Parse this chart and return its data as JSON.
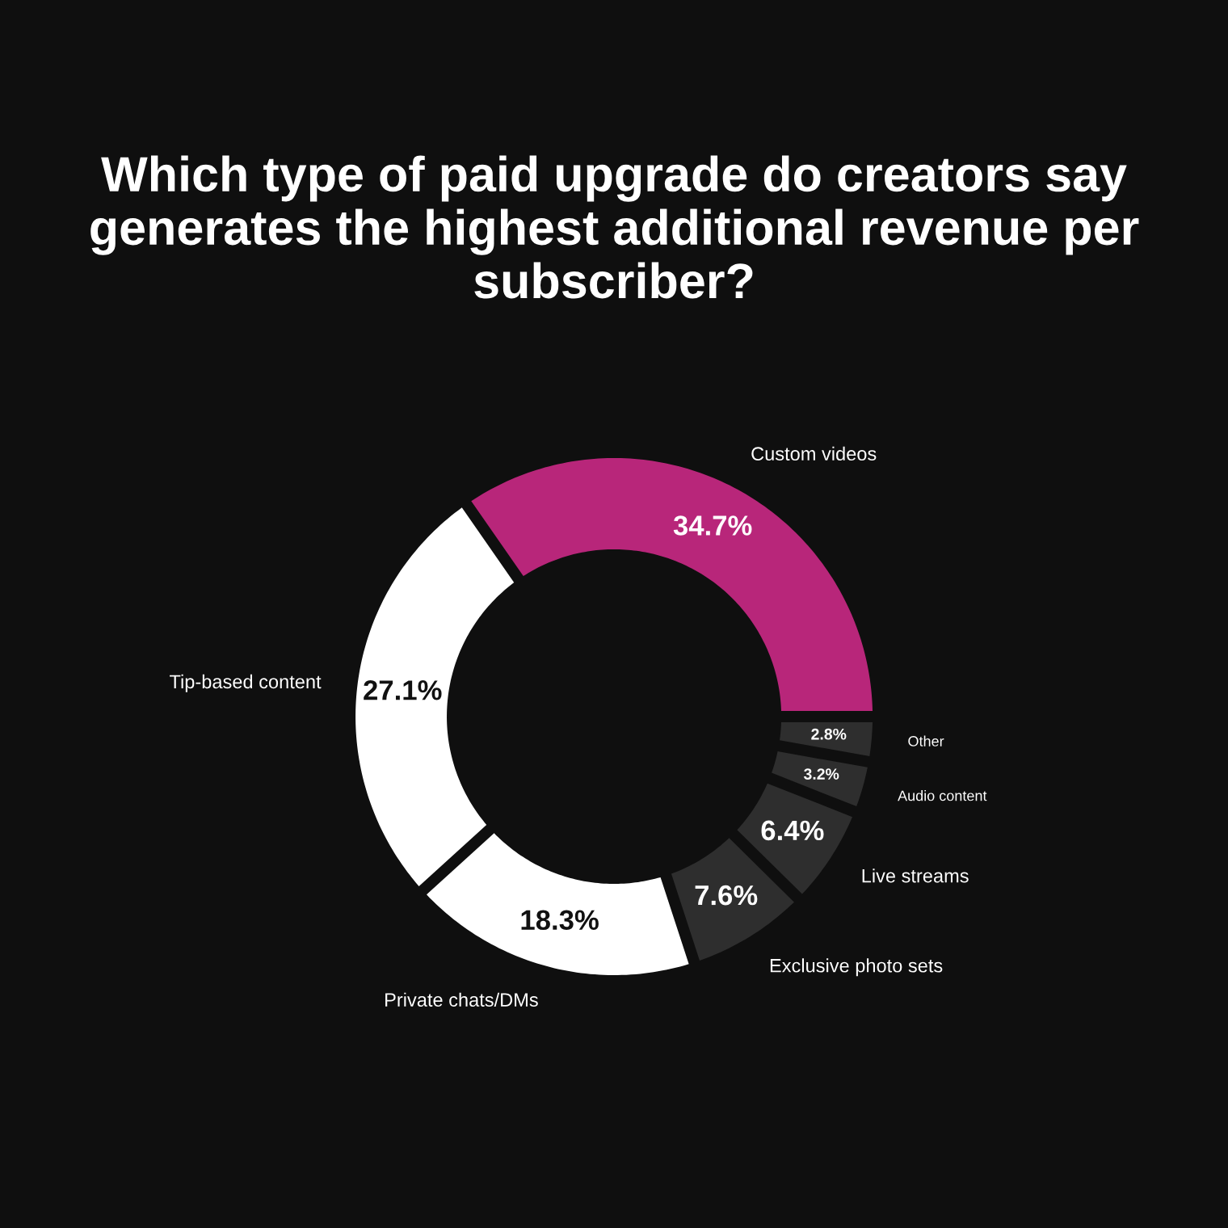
{
  "chart_data": {
    "type": "donut",
    "title": "Which type of paid upgrade do creators say generates the highest additional revenue per subscriber?",
    "categories": [
      "Custom videos",
      "Tip-based content",
      "Private chats/DMs",
      "Exclusive photo sets",
      "Live streams",
      "Audio content",
      "Other"
    ],
    "values": [
      34.7,
      27.1,
      18.3,
      7.6,
      6.4,
      3.2,
      2.8
    ],
    "colors": [
      "#b8267a",
      "#ffffff",
      "#ffffff",
      "#2e2e2e",
      "#2e2e2e",
      "#2e2e2e",
      "#2e2e2e"
    ],
    "value_labels": [
      "34.7%",
      "27.1%",
      "18.3%",
      "7.6%",
      "6.4%",
      "3.2%",
      "2.8%"
    ]
  }
}
